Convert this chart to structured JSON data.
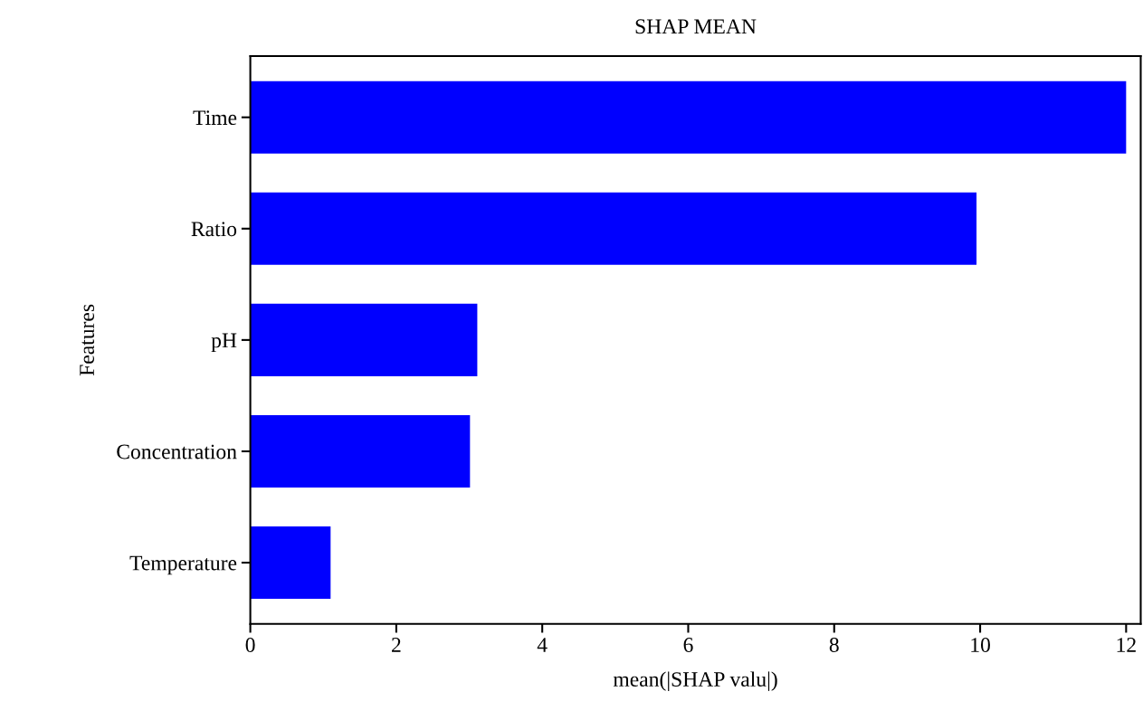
{
  "chart_data": {
    "type": "bar",
    "orientation": "horizontal",
    "title": "SHAP MEAN",
    "xlabel": "mean(|SHAP valu|)",
    "ylabel": "Features",
    "categories": [
      "Time",
      "Ratio",
      "pH",
      "Concentration",
      "Temperature"
    ],
    "values": [
      12.0,
      9.95,
      3.11,
      3.01,
      1.1
    ],
    "color": "#0000ff",
    "xlim": [
      0,
      12.2
    ],
    "xticks": [
      0,
      2,
      4,
      6,
      8,
      10,
      12
    ],
    "grid": false
  }
}
